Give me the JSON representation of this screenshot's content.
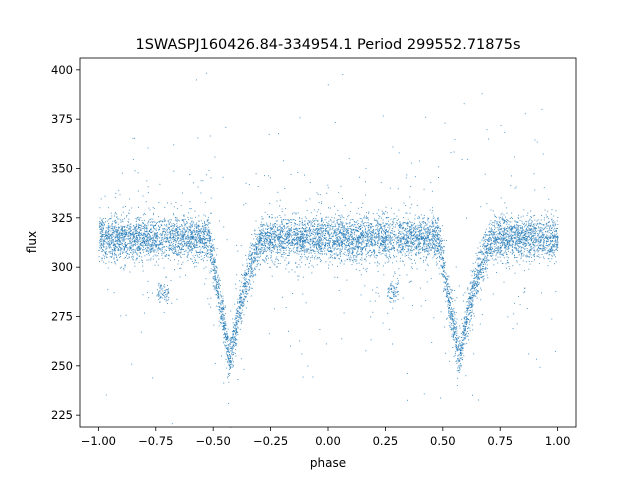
{
  "chart_data": {
    "type": "scatter",
    "title": "1SWASPJ160426.84-334954.1 Period 299552.71875s",
    "xlabel": "phase",
    "ylabel": "flux",
    "xlim": [
      -1.08,
      1.08
    ],
    "ylim": [
      219,
      406
    ],
    "xticks": [
      -1.0,
      -0.75,
      -0.5,
      -0.25,
      0.0,
      0.25,
      0.5,
      0.75,
      1.0
    ],
    "xtick_labels": [
      "−1.00",
      "−0.75",
      "−0.50",
      "−0.25",
      "0.00",
      "0.25",
      "0.50",
      "0.75",
      "1.00"
    ],
    "yticks": [
      225,
      250,
      275,
      300,
      325,
      350,
      375,
      400
    ],
    "ytick_labels": [
      "225",
      "250",
      "275",
      "300",
      "325",
      "350",
      "375",
      "400"
    ],
    "grid": false,
    "marker_color": "#1f77b4",
    "series": [
      {
        "points_note": "phase-folded light curve; baseline flux ≈ 315, primary eclipses near phase −0.43 and 0.57 reaching ≈ 250, secondary bump near phase −0.72 and 0.28 at ≈ 288"
      }
    ]
  }
}
